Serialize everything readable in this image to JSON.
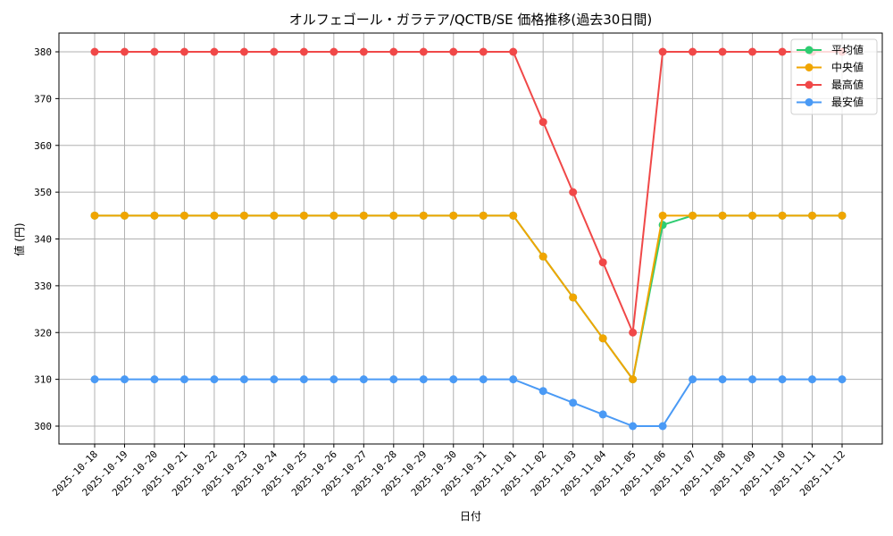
{
  "chart_data": {
    "type": "line",
    "title": "オルフェゴール・ガラテア/QCTB/SE 価格推移(過去30日間)",
    "xlabel": "日付",
    "ylabel": "値 (円)",
    "ylim": [
      296,
      384
    ],
    "yticks": [
      300,
      310,
      320,
      330,
      340,
      350,
      360,
      370,
      380
    ],
    "grid": true,
    "legend_position": "upper right",
    "categories": [
      "2025-10-18",
      "2025-10-19",
      "2025-10-20",
      "2025-10-21",
      "2025-10-22",
      "2025-10-23",
      "2025-10-24",
      "2025-10-25",
      "2025-10-26",
      "2025-10-27",
      "2025-10-28",
      "2025-10-29",
      "2025-10-30",
      "2025-10-31",
      "2025-11-01",
      "2025-11-02",
      "2025-11-03",
      "2025-11-04",
      "2025-11-05",
      "2025-11-06",
      "2025-11-07",
      "2025-11-08",
      "2025-11-09",
      "2025-11-10",
      "2025-11-11",
      "2025-11-12"
    ],
    "series": [
      {
        "name": "平均値",
        "color": "#2ecc71",
        "values": [
          345,
          345,
          345,
          345,
          345,
          345,
          345,
          345,
          345,
          345,
          345,
          345,
          345,
          345,
          345,
          336.25,
          327.5,
          318.75,
          310,
          343,
          345,
          345,
          345,
          345,
          345,
          345
        ]
      },
      {
        "name": "中央値",
        "color": "#f0a500",
        "values": [
          345,
          345,
          345,
          345,
          345,
          345,
          345,
          345,
          345,
          345,
          345,
          345,
          345,
          345,
          345,
          336.25,
          327.5,
          318.75,
          310,
          345,
          345,
          345,
          345,
          345,
          345,
          345
        ]
      },
      {
        "name": "最高値",
        "color": "#f04848",
        "values": [
          380,
          380,
          380,
          380,
          380,
          380,
          380,
          380,
          380,
          380,
          380,
          380,
          380,
          380,
          380,
          365,
          350,
          335,
          320,
          380,
          380,
          380,
          380,
          380,
          380,
          380
        ]
      },
      {
        "name": "最安値",
        "color": "#4a9af5",
        "values": [
          310,
          310,
          310,
          310,
          310,
          310,
          310,
          310,
          310,
          310,
          310,
          310,
          310,
          310,
          310,
          307.5,
          305,
          302.5,
          300,
          300,
          310,
          310,
          310,
          310,
          310,
          310
        ]
      }
    ]
  }
}
